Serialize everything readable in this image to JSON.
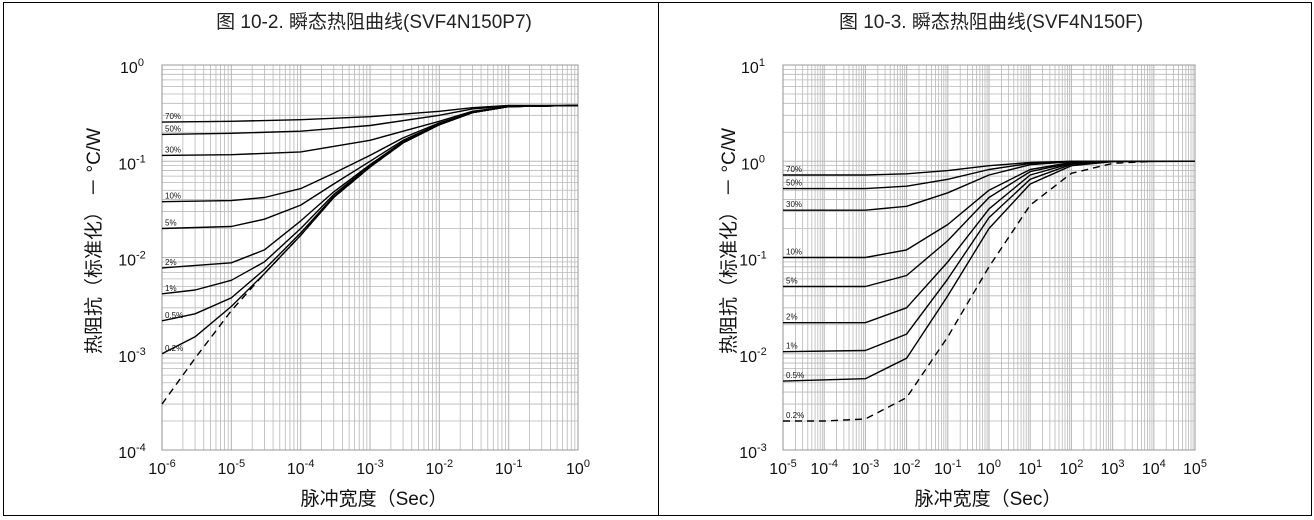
{
  "chart_data": [
    {
      "type": "line",
      "title": "图 10-2. 瞬态热阻曲线(SVF4N150P7)",
      "xlabel": "脉冲宽度（Sec）",
      "ylabel": "热阻抗（标准化） － °C/W",
      "x_scale": "log",
      "y_scale": "log",
      "xlim": [
        1e-06,
        1
      ],
      "ylim": [
        0.0001,
        1
      ],
      "x_tick_labels": [
        {
          "base": "10",
          "exp": "-6"
        },
        {
          "base": "10",
          "exp": "-5"
        },
        {
          "base": "10",
          "exp": "-4"
        },
        {
          "base": "10",
          "exp": "-3"
        },
        {
          "base": "10",
          "exp": "-2"
        },
        {
          "base": "10",
          "exp": "-1"
        },
        {
          "base": "10",
          "exp": "0"
        }
      ],
      "y_tick_labels": [
        {
          "base": "10",
          "exp": "-4"
        },
        {
          "base": "10",
          "exp": "-3"
        },
        {
          "base": "10",
          "exp": "-2"
        },
        {
          "base": "10",
          "exp": "-1"
        },
        {
          "base": "10",
          "exp": "0"
        }
      ],
      "grid": true,
      "series": [
        {
          "name": "70%",
          "x": [
            1e-06,
            1e-05,
            0.0001,
            0.001,
            0.01,
            0.03,
            0.1,
            1
          ],
          "y": [
            0.255,
            0.26,
            0.27,
            0.29,
            0.33,
            0.36,
            0.38,
            0.38
          ]
        },
        {
          "name": "50%",
          "x": [
            1e-06,
            1e-05,
            0.0001,
            0.001,
            0.01,
            0.03,
            0.1,
            1
          ],
          "y": [
            0.19,
            0.195,
            0.205,
            0.235,
            0.3,
            0.35,
            0.375,
            0.38
          ]
        },
        {
          "name": "30%",
          "x": [
            1e-06,
            1e-05,
            0.0001,
            0.001,
            0.01,
            0.03,
            0.1,
            1
          ],
          "y": [
            0.115,
            0.117,
            0.125,
            0.165,
            0.26,
            0.33,
            0.37,
            0.38
          ]
        },
        {
          "name": "10%",
          "x": [
            1e-06,
            1e-05,
            3e-05,
            0.0001,
            0.0003,
            0.001,
            0.003,
            0.01,
            0.03,
            0.1,
            1
          ],
          "y": [
            0.038,
            0.039,
            0.042,
            0.052,
            0.075,
            0.115,
            0.175,
            0.25,
            0.32,
            0.37,
            0.38
          ]
        },
        {
          "name": "5%",
          "x": [
            1e-06,
            1e-05,
            3e-05,
            0.0001,
            0.0003,
            0.001,
            0.003,
            0.01,
            0.03,
            0.1,
            1
          ],
          "y": [
            0.02,
            0.021,
            0.025,
            0.035,
            0.058,
            0.1,
            0.165,
            0.245,
            0.32,
            0.37,
            0.38
          ]
        },
        {
          "name": "2%",
          "x": [
            1e-06,
            1e-05,
            3e-05,
            0.0001,
            0.0003,
            0.001,
            0.003,
            0.01,
            0.03,
            0.1,
            1
          ],
          "y": [
            0.0078,
            0.0088,
            0.012,
            0.024,
            0.048,
            0.092,
            0.16,
            0.24,
            0.32,
            0.37,
            0.38
          ]
        },
        {
          "name": "1%",
          "x": [
            1e-06,
            3e-06,
            1e-05,
            3e-05,
            0.0001,
            0.0003,
            0.001,
            0.003,
            0.01,
            0.03,
            0.1,
            1
          ],
          "y": [
            0.0042,
            0.0046,
            0.0058,
            0.009,
            0.02,
            0.045,
            0.09,
            0.158,
            0.24,
            0.32,
            0.37,
            0.38
          ]
        },
        {
          "name": "0.5%",
          "x": [
            1e-06,
            3e-06,
            1e-05,
            3e-05,
            0.0001,
            0.0003,
            0.001,
            0.003,
            0.01,
            0.03,
            0.1,
            1
          ],
          "y": [
            0.0022,
            0.0026,
            0.0038,
            0.0075,
            0.018,
            0.043,
            0.088,
            0.156,
            0.24,
            0.32,
            0.37,
            0.38
          ]
        },
        {
          "name": "0.2%",
          "x": [
            1e-06,
            3e-06,
            1e-05,
            3e-05,
            0.0001,
            0.0003,
            0.001,
            0.003,
            0.01,
            0.03,
            0.1,
            1
          ],
          "y": [
            0.001,
            0.0015,
            0.0031,
            0.0068,
            0.017,
            0.042,
            0.087,
            0.155,
            0.24,
            0.32,
            0.37,
            0.38
          ]
        },
        {
          "name": "",
          "dashed": true,
          "x": [
            1e-06,
            3e-06,
            1e-05,
            3e-05,
            0.0001,
            0.0003,
            0.001,
            0.003,
            0.01,
            0.03,
            0.1,
            1
          ],
          "y": [
            0.0003,
            0.0009,
            0.0028,
            0.0068,
            0.017,
            0.042,
            0.087,
            0.155,
            0.24,
            0.32,
            0.37,
            0.38
          ]
        }
      ]
    },
    {
      "type": "line",
      "title": "图 10-3. 瞬态热阻曲线(SVF4N150F)",
      "xlabel": "脉冲宽度（Sec）",
      "ylabel": "热阻抗（标准化） － °C/W",
      "x_scale": "log",
      "y_scale": "log",
      "xlim": [
        1e-05,
        100000.0
      ],
      "ylim": [
        0.001,
        10
      ],
      "x_tick_labels": [
        {
          "base": "10",
          "exp": "-5"
        },
        {
          "base": "10",
          "exp": "-4"
        },
        {
          "base": "10",
          "exp": "-3"
        },
        {
          "base": "10",
          "exp": "-2"
        },
        {
          "base": "10",
          "exp": "-1"
        },
        {
          "base": "10",
          "exp": "0"
        },
        {
          "base": "10",
          "exp": "1"
        },
        {
          "base": "10",
          "exp": "2"
        },
        {
          "base": "10",
          "exp": "3"
        },
        {
          "base": "10",
          "exp": "4"
        },
        {
          "base": "10",
          "exp": "5"
        }
      ],
      "y_tick_labels": [
        {
          "base": "10",
          "exp": "-3"
        },
        {
          "base": "10",
          "exp": "-2"
        },
        {
          "base": "10",
          "exp": "-1"
        },
        {
          "base": "10",
          "exp": "0"
        },
        {
          "base": "10",
          "exp": "1"
        }
      ],
      "grid": true,
      "series": [
        {
          "name": "70%",
          "x": [
            1e-05,
            0.001,
            0.01,
            0.1,
            1,
            10,
            100,
            1000,
            100000.0
          ],
          "y": [
            0.72,
            0.72,
            0.74,
            0.8,
            0.9,
            0.97,
            1.0,
            1.0,
            1.0
          ]
        },
        {
          "name": "50%",
          "x": [
            1e-05,
            0.001,
            0.01,
            0.1,
            1,
            10,
            100,
            1000,
            100000.0
          ],
          "y": [
            0.52,
            0.52,
            0.55,
            0.65,
            0.82,
            0.95,
            1.0,
            1.0,
            1.0
          ]
        },
        {
          "name": "30%",
          "x": [
            1e-05,
            0.001,
            0.01,
            0.1,
            1,
            10,
            100,
            1000,
            100000.0
          ],
          "y": [
            0.31,
            0.31,
            0.34,
            0.47,
            0.72,
            0.92,
            0.99,
            1.0,
            1.0
          ]
        },
        {
          "name": "10%",
          "x": [
            1e-05,
            0.001,
            0.01,
            0.1,
            1,
            10,
            100,
            1000,
            100000.0
          ],
          "y": [
            0.1,
            0.1,
            0.12,
            0.22,
            0.5,
            0.82,
            0.97,
            1.0,
            1.0
          ]
        },
        {
          "name": "5%",
          "x": [
            1e-05,
            0.001,
            0.01,
            0.1,
            1,
            10,
            100,
            1000,
            100000.0
          ],
          "y": [
            0.05,
            0.05,
            0.065,
            0.15,
            0.42,
            0.78,
            0.96,
            1.0,
            1.0
          ]
        },
        {
          "name": "2%",
          "x": [
            1e-05,
            0.001,
            0.01,
            0.1,
            1,
            10,
            100,
            1000,
            100000.0
          ],
          "y": [
            0.021,
            0.021,
            0.03,
            0.09,
            0.32,
            0.72,
            0.95,
            1.0,
            1.0
          ]
        },
        {
          "name": "1%",
          "x": [
            1e-05,
            0.001,
            0.01,
            0.1,
            1,
            10,
            100,
            1000,
            100000.0
          ],
          "y": [
            0.0105,
            0.0108,
            0.016,
            0.06,
            0.26,
            0.65,
            0.93,
            1.0,
            1.0
          ]
        },
        {
          "name": "0.5%",
          "x": [
            1e-05,
            0.001,
            0.01,
            0.1,
            1,
            10,
            100,
            1000,
            100000.0
          ],
          "y": [
            0.0052,
            0.0055,
            0.009,
            0.04,
            0.2,
            0.58,
            0.9,
            0.99,
            1.0
          ]
        },
        {
          "name": "0.2%",
          "dashed": true,
          "x": [
            1e-05,
            0.0001,
            0.001,
            0.01,
            0.1,
            1,
            10,
            100,
            1000,
            10000.0,
            100000.0
          ],
          "y": [
            0.002,
            0.002,
            0.0021,
            0.0035,
            0.015,
            0.08,
            0.35,
            0.75,
            0.95,
            1.0,
            1.0
          ]
        }
      ]
    }
  ]
}
